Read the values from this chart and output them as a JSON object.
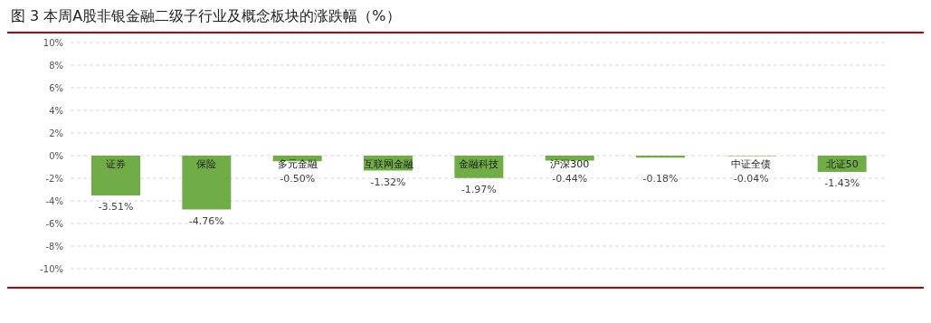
{
  "chart_data": {
    "type": "bar",
    "title": "图 3  本周A股非银金融二级子行业及概念板块的涨跌幅（%）",
    "categories": [
      "证券",
      "保险",
      "多元金融",
      "互联网金融",
      "金融科技",
      "沪深300",
      null,
      "中证全债",
      "北证50"
    ],
    "values": [
      -3.51,
      -4.76,
      -0.5,
      -1.32,
      -1.97,
      -0.44,
      -0.18,
      -0.04,
      -1.43
    ],
    "value_labels": [
      "-3.51%",
      "-4.76%",
      "-0.50%",
      "-1.32%",
      "-1.97%",
      "-0.44%",
      "-0.18%",
      "-0.04%",
      "-1.43%"
    ],
    "color": "#70ad47",
    "ylim": [
      -10,
      10
    ],
    "yticks": [
      {
        "value": -10,
        "label": "-10%"
      },
      {
        "value": -8,
        "label": "-8%"
      },
      {
        "value": -6,
        "label": "-6%"
      },
      {
        "value": -4,
        "label": "-4%"
      },
      {
        "value": -2,
        "label": "-2%"
      },
      {
        "value": 0,
        "label": "0%"
      },
      {
        "value": 2,
        "label": "2%"
      },
      {
        "value": 4,
        "label": "4%"
      },
      {
        "value": 6,
        "label": "6%"
      },
      {
        "value": 8,
        "label": "8%"
      },
      {
        "value": 10,
        "label": "10%"
      }
    ],
    "grid": "y"
  }
}
